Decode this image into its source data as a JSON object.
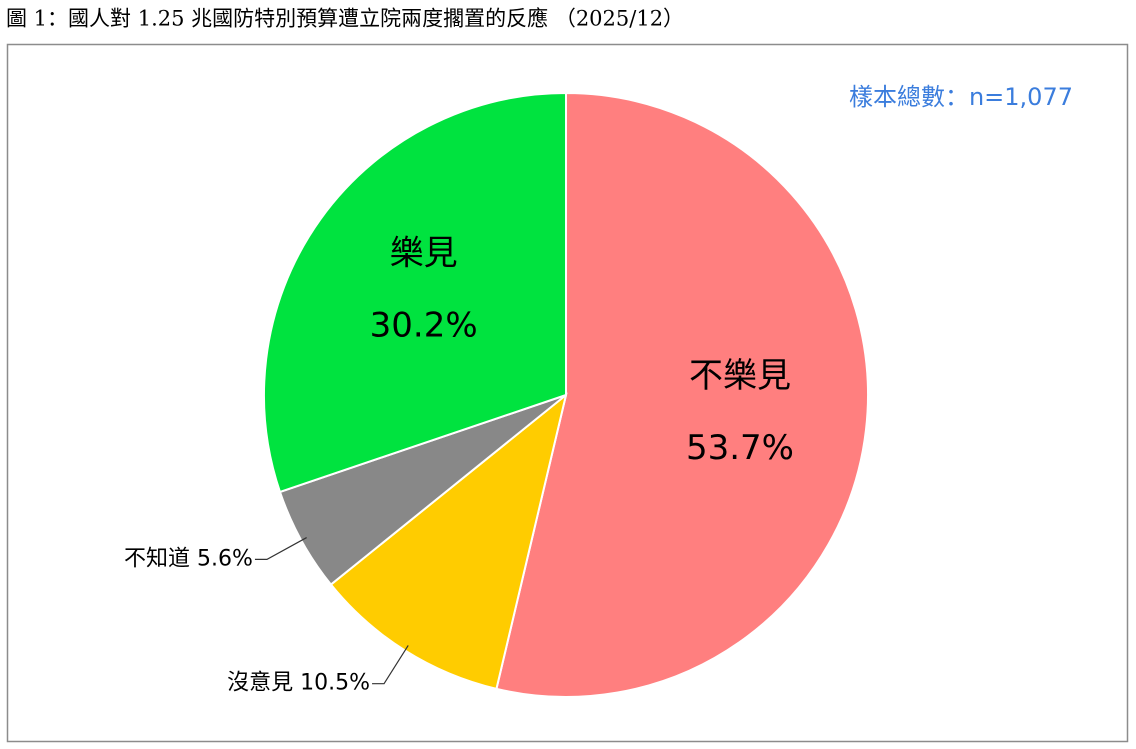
{
  "chart_data": {
    "type": "pie",
    "title": "圖 1：國人對 1.25 兆國防特別預算遭立院兩度擱置的反應 （2025/12）",
    "annotation": "樣本總數：n=1,077",
    "categories": [
      "不樂見",
      "沒意見",
      "不知道",
      "樂見"
    ],
    "values": [
      53.7,
      10.5,
      5.6,
      30.2
    ],
    "value_labels": [
      "53.7%",
      "10.5%",
      "5.6%",
      "30.2%"
    ],
    "colors": [
      "#ff7f7f",
      "#ffcc00",
      "#888888",
      "#00e33f"
    ]
  }
}
